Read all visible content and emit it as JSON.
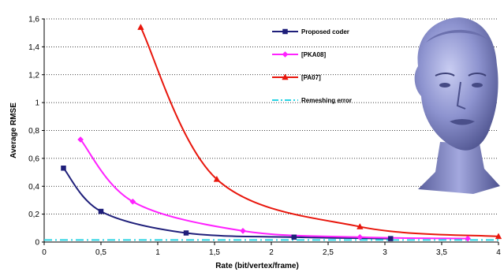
{
  "chart_data": {
    "type": "line",
    "title": "",
    "xlabel": "Rate (bit/vertex/frame)",
    "ylabel": "Average RMSE",
    "xlim": [
      0,
      4
    ],
    "ylim": [
      0,
      1.6
    ],
    "x_ticks": [
      "0",
      "0,5",
      "1",
      "1,5",
      "2",
      "2,5",
      "3",
      "3,5",
      "4"
    ],
    "y_ticks": [
      "0",
      "0,2",
      "0,4",
      "0,6",
      "0,8",
      "1",
      "1,2",
      "1,4",
      "1,6"
    ],
    "grid": "horizontal dotted",
    "legend_position": "inside top-right",
    "series": [
      {
        "name": "Proposed coder",
        "color": "#1f1f7a",
        "marker": "square",
        "line": "solid",
        "points": [
          [
            0.17,
            0.53
          ],
          [
            0.5,
            0.22
          ],
          [
            1.25,
            0.065
          ],
          [
            2.2,
            0.035
          ],
          [
            3.05,
            0.025
          ]
        ]
      },
      {
        "name": "[PKA08]",
        "color": "#ff22ff",
        "marker": "diamond",
        "line": "solid",
        "points": [
          [
            0.32,
            0.735
          ],
          [
            0.78,
            0.29
          ],
          [
            1.75,
            0.08
          ],
          [
            2.78,
            0.035
          ],
          [
            3.73,
            0.025
          ]
        ]
      },
      {
        "name": "[PA07]",
        "color": "#e8160c",
        "marker": "triangle",
        "line": "solid",
        "points": [
          [
            0.85,
            1.54
          ],
          [
            1.52,
            0.45
          ],
          [
            2.78,
            0.11
          ],
          [
            4.0,
            0.04
          ]
        ]
      },
      {
        "name": "Remeshing error",
        "color": "#2ad4e4",
        "marker": "none",
        "line": "dash-dot",
        "points": [
          [
            0,
            0.015
          ],
          [
            4,
            0.015
          ]
        ]
      }
    ],
    "inset_image": "sculpted-head-3d-mesh"
  }
}
